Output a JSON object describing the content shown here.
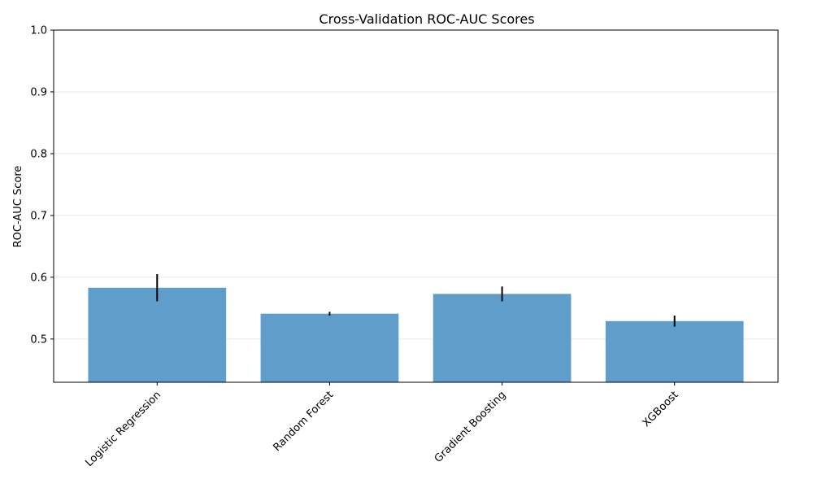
{
  "chart_data": {
    "type": "bar",
    "title": "Cross-Validation ROC-AUC Scores",
    "xlabel": "",
    "ylabel": "ROC-AUC Score",
    "categories": [
      "Logistic Regression",
      "Random Forest",
      "Gradient Boosting",
      "XGBoost"
    ],
    "values": [
      0.583,
      0.541,
      0.573,
      0.529
    ],
    "errors": [
      0.022,
      0.003,
      0.012,
      0.009
    ],
    "ylim": [
      0.43,
      1.0
    ],
    "yticks": [
      0.5,
      0.6,
      0.7,
      0.8,
      0.9,
      1.0
    ],
    "ytick_labels": [
      "0.5",
      "0.6",
      "0.7",
      "0.8",
      "0.9",
      "1.0"
    ],
    "grid": "y",
    "bar_color": "#5f9ecb",
    "error_color": "#000000"
  }
}
